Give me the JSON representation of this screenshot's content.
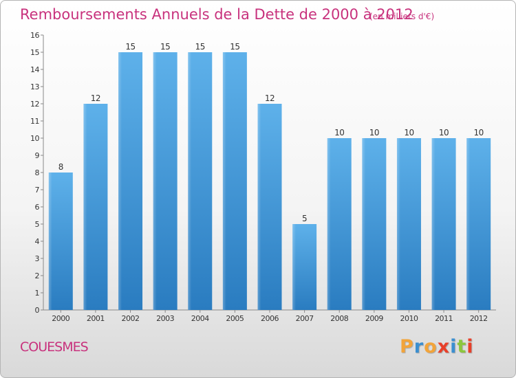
{
  "title": "Remboursements Annuels de la Dette de 2000 à 2012",
  "subtitle": "(en milliers d'€)",
  "commune": "COUESMES",
  "brand": {
    "letters": [
      "P",
      "r",
      "o",
      "x",
      "i",
      "t",
      "i"
    ],
    "colors": [
      "#f2a43a",
      "#3b8fd0",
      "#f2a43a",
      "#e8402a",
      "#3b8fd0",
      "#8cc63e",
      "#e8402a"
    ]
  },
  "colors": {
    "bar_light": "#5eb1ea",
    "bar_dark": "#2a7cc0",
    "title": "#c8327d"
  },
  "chart_data": {
    "type": "bar",
    "categories": [
      "2000",
      "2001",
      "2002",
      "2003",
      "2004",
      "2005",
      "2006",
      "2007",
      "2008",
      "2009",
      "2010",
      "2011",
      "2012"
    ],
    "values": [
      8,
      12,
      15,
      15,
      15,
      15,
      12,
      5,
      10,
      10,
      10,
      10,
      10
    ],
    "ylim": [
      0,
      16
    ],
    "yticks": [
      "0",
      "1",
      "2",
      "3",
      "4",
      "5",
      "6",
      "7",
      "8",
      "9",
      "10",
      "11",
      "12",
      "13",
      "14",
      "15",
      "16"
    ],
    "xlabel": "",
    "ylabel": "",
    "grid": false
  }
}
